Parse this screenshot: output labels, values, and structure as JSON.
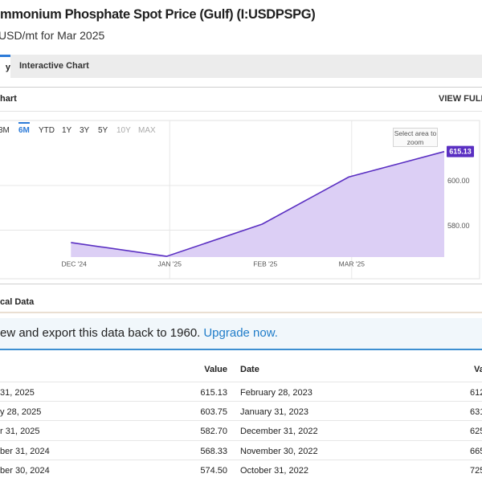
{
  "header": {
    "title": "mmonium Phosphate Spot Price (Gulf) (I:USDPSPG)",
    "subtitle": "USD/mt for Mar 2025"
  },
  "tabs": [
    "y",
    "Interactive Chart"
  ],
  "chart_panel": {
    "title": "hart",
    "action": "VIEW FULL C",
    "ranges": [
      "3M",
      "6M",
      "YTD",
      "1Y",
      "3Y",
      "5Y",
      "10Y",
      "MAX"
    ],
    "active_range": 1,
    "disabled_ranges": [
      6,
      7
    ],
    "zoom_hint": "Select area to zoom"
  },
  "chart_data": {
    "type": "line",
    "x": [
      "2024-11-30",
      "2024-12-31",
      "2025-01-31",
      "2025-02-28",
      "2025-03-31"
    ],
    "series": [
      {
        "name": "I:USDPSPG",
        "color": "#5a2fc2",
        "fill": "#dccff5",
        "values": [
          574.5,
          568.33,
          582.7,
          603.75,
          615.13
        ]
      }
    ],
    "xlim": [
      "2024-11-07",
      "2025-03-31"
    ],
    "xticks": [
      {
        "value": "2024-12-01",
        "label": "DEC '24"
      },
      {
        "value": "2025-01-01",
        "label": "JAN '25"
      },
      {
        "value": "2025-02-01",
        "label": "FEB '25"
      },
      {
        "value": "2025-03-01",
        "label": "MAR '25"
      }
    ],
    "xgrid_ticks": [
      1,
      3
    ],
    "ylim": [
      568,
      629
    ],
    "yticks": [
      {
        "value": 580,
        "label": "580.00"
      },
      {
        "value": 600,
        "label": "600.00"
      }
    ],
    "grid": true
  },
  "historical": {
    "title": "cal Data",
    "banner": {
      "text": "ew and export this data back to 1960.",
      "link": "Upgrade now."
    },
    "left_table": {
      "header_value": "Value",
      "rows": [
        [
          "31, 2025",
          "615.13"
        ],
        [
          "y 28, 2025",
          "603.75"
        ],
        [
          "r 31, 2025",
          "582.70"
        ],
        [
          "ber 31, 2024",
          "568.33"
        ],
        [
          "ber 30, 2024",
          "574.50"
        ]
      ]
    },
    "right_table": {
      "header_date": "Date",
      "header_value": "Va",
      "rows": [
        [
          "February 28, 2023",
          "612"
        ],
        [
          "January 31, 2023",
          "631"
        ],
        [
          "December 31, 2022",
          "625"
        ],
        [
          "November 30, 2022",
          "665"
        ],
        [
          "October 31, 2022",
          "725"
        ]
      ]
    }
  }
}
